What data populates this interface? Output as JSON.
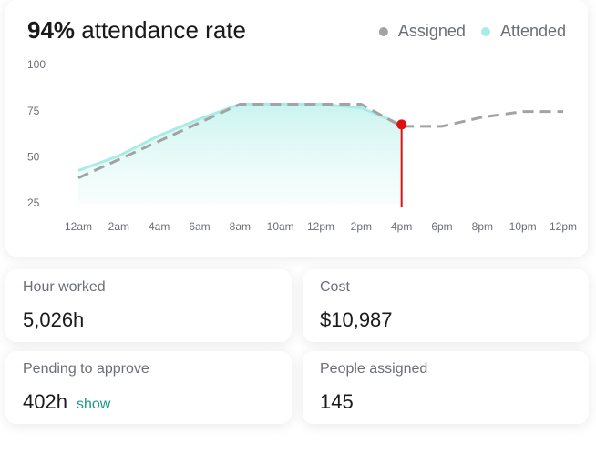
{
  "chart_data": {
    "type": "line",
    "title_highlight": "94%",
    "title": "attendance rate",
    "categories": [
      "12am",
      "2am",
      "4am",
      "6am",
      "8am",
      "10am",
      "12pm",
      "2pm",
      "4pm",
      "6pm",
      "8pm",
      "10pm",
      "12pm"
    ],
    "series": [
      {
        "name": "Assigned",
        "color": "#a3a3a3",
        "values": [
          39,
          49,
          59,
          69,
          79,
          79,
          79,
          79,
          67,
          67,
          72,
          75,
          75
        ]
      },
      {
        "name": "Attended",
        "color": "#a8ece6",
        "values": [
          43,
          51,
          62,
          71,
          79,
          79,
          79,
          77,
          68,
          null,
          null,
          null,
          null
        ]
      }
    ],
    "ylim": [
      25,
      100
    ],
    "yticks": [
      25,
      50,
      75,
      100
    ],
    "grid": false,
    "legend": "top-right"
  },
  "cards": [
    {
      "label": "Hour worked",
      "value": "5,026h"
    },
    {
      "label": "Cost",
      "value": "$10,987"
    },
    {
      "label": "Pending to approve",
      "value": "402h",
      "link": "show"
    },
    {
      "label": "People assigned",
      "value": "145"
    }
  ]
}
